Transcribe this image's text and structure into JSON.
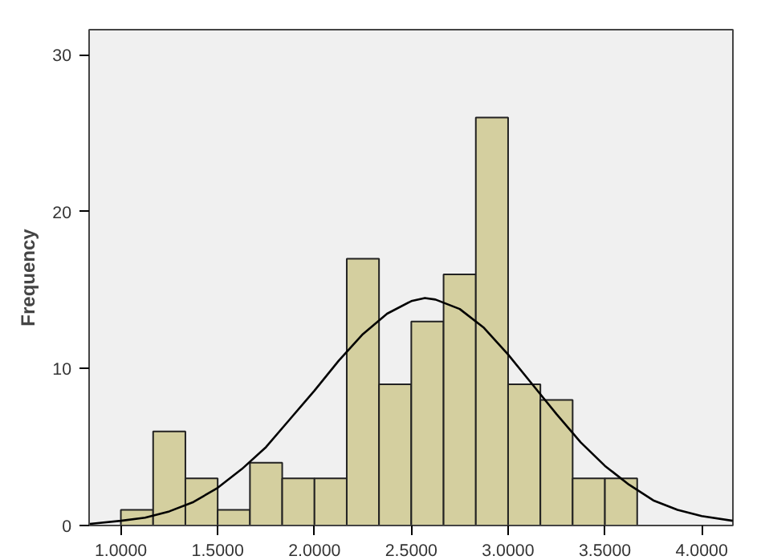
{
  "chart_data": {
    "type": "histogram",
    "ylabel": "Frequency",
    "bins": [
      1.0,
      1.1667,
      1.3333,
      1.5,
      1.6667,
      1.8333,
      2.0,
      2.1667,
      2.3333,
      2.5,
      2.6667,
      2.8333,
      3.0,
      3.1667,
      3.3333,
      3.5,
      3.6667
    ],
    "values": [
      1,
      6,
      3,
      1,
      4,
      3,
      3,
      17,
      9,
      13,
      16,
      26,
      9,
      8,
      3,
      3
    ],
    "color": "#d4cf9f",
    "series": [
      {
        "type": "line",
        "color": "#000000",
        "x": [
          0.84,
          1.0,
          1.125,
          1.25,
          1.375,
          1.5,
          1.625,
          1.75,
          1.875,
          2.0,
          2.125,
          2.25,
          2.375,
          2.5,
          2.57,
          2.625,
          2.75,
          2.875,
          3.0,
          3.125,
          3.25,
          3.375,
          3.5,
          3.625,
          3.75,
          3.875,
          4.0,
          4.16
        ],
        "values": [
          0.1,
          0.3,
          0.5,
          0.9,
          1.5,
          2.4,
          3.6,
          5.0,
          6.8,
          8.6,
          10.5,
          12.2,
          13.5,
          14.3,
          14.5,
          14.4,
          13.8,
          12.6,
          10.9,
          9.0,
          7.1,
          5.3,
          3.8,
          2.6,
          1.6,
          1.0,
          0.6,
          0.3
        ]
      }
    ],
    "xlim": [
      0.836,
      4.161
    ],
    "ylim": [
      0,
      31.6
    ],
    "xticks": [
      {
        "value": 1.0,
        "label": "1.0000"
      },
      {
        "value": 1.5,
        "label": "1.5000"
      },
      {
        "value": 2.0,
        "label": "2.0000"
      },
      {
        "value": 2.5,
        "label": "2.5000"
      },
      {
        "value": 3.0,
        "label": "3.0000"
      },
      {
        "value": 3.5,
        "label": "3.5000"
      },
      {
        "value": 4.0,
        "label": "4.0000"
      }
    ],
    "yticks": [
      0,
      10,
      20,
      30
    ],
    "grid": false
  }
}
